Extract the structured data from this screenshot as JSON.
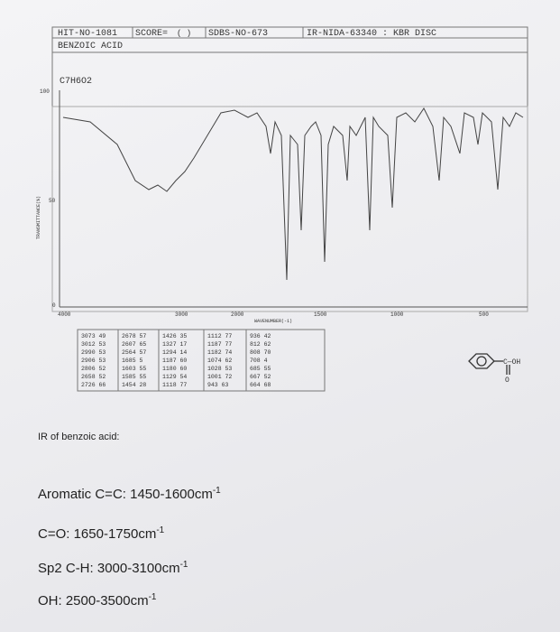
{
  "header": {
    "hit_no": "HIT-NO-1081",
    "score": "SCORE=",
    "score_value": "( )",
    "sdbs_no": "SDBS-NO-673",
    "ir_no": "IR-NIDA-63340 : KBR DISC",
    "compound": "BENZOIC ACID",
    "formula": "C7H6O2"
  },
  "spectrum": {
    "y_label": "TRANSMITTANCE(%)",
    "y_ticks": [
      "100",
      "50",
      "0"
    ],
    "x_label": "WAVENUMBER(-1)",
    "x_ticks": [
      "4000",
      "3000",
      "2000",
      "1500",
      "1000",
      "500"
    ]
  },
  "peak_table": {
    "columns": [
      [
        "3073 49",
        "3012 53",
        "2990 53",
        "2906 53",
        "2806 52",
        "2658 52",
        "2726 66"
      ],
      [
        "2678 57",
        "2607 65",
        "2564 57",
        "1685 5",
        "1603 55",
        "1585 55",
        "1454 28"
      ],
      [
        "1426 35",
        "1327 17",
        "1294 14",
        "1187 60",
        "1180 60",
        "1129 54",
        "1118 77"
      ],
      [
        "1112 77",
        "1187 77",
        "1182 74",
        "1074 62",
        "1028 53",
        "1001 72",
        "943 63"
      ],
      [
        "936 42",
        "812 62",
        "808 70",
        "708 4",
        "685 55",
        "667 52",
        "664 68"
      ]
    ]
  },
  "structure": {
    "group": "C—OH",
    "oxygen": "O"
  },
  "notes": {
    "title": "IR of benzoic acid:",
    "items": [
      {
        "text": "Aromatic C=C: 1450-1600cm",
        "sup": "-1"
      },
      {
        "text": "C=O: 1650-1750cm",
        "sup": "-1"
      },
      {
        "text": "Sp2 C-H: 3000-3100cm",
        "sup": "-1"
      },
      {
        "text": "OH: 2500-3500cm",
        "sup": "-1"
      }
    ]
  }
}
